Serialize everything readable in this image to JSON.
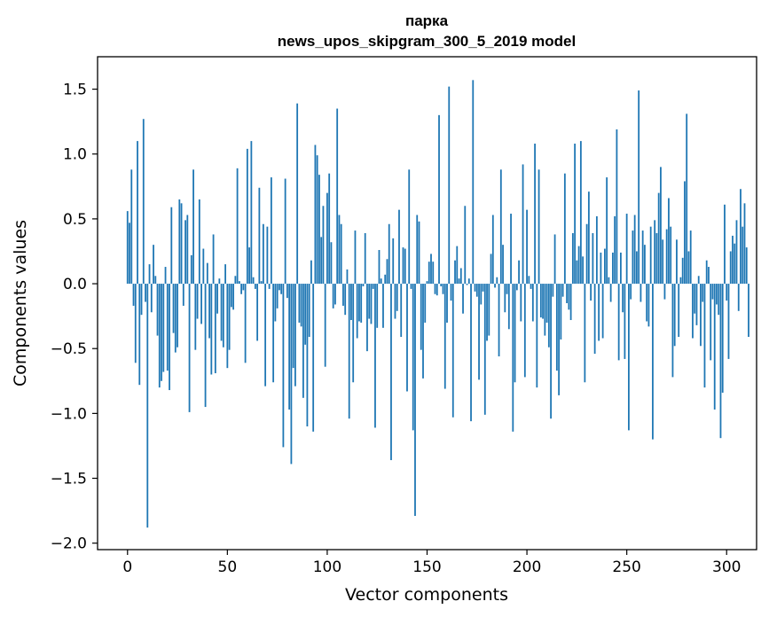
{
  "chart_data": {
    "type": "bar",
    "title_line1": "парка",
    "title_line2": "news_upos_skipgram_300_5_2019 model",
    "xlabel": "Vector components",
    "ylabel": "Components values",
    "xlim": [
      -15,
      315
    ],
    "ylim": [
      -2.05,
      1.75
    ],
    "xticks": [
      0,
      50,
      100,
      150,
      200,
      250,
      300
    ],
    "xtick_labels": [
      "0",
      "50",
      "100",
      "150",
      "200",
      "250",
      "300"
    ],
    "yticks": [
      1.5,
      1.0,
      0.5,
      0.0,
      -0.5,
      -1.0,
      -1.5,
      -2.0
    ],
    "ytick_labels": [
      "1.5",
      "1.0",
      "0.5",
      "0.0",
      "−0.5",
      "−1.0",
      "−1.5",
      "−2.0"
    ],
    "bar_color": "#1f77b4",
    "values": [
      0.56,
      0.47,
      0.88,
      -0.17,
      -0.61,
      1.1,
      -0.78,
      -0.24,
      1.27,
      -0.14,
      -1.88,
      0.15,
      -0.22,
      0.3,
      0.06,
      -0.4,
      -0.8,
      -0.75,
      -0.68,
      0.13,
      -0.67,
      -0.82,
      0.59,
      -0.38,
      -0.53,
      -0.49,
      0.65,
      0.62,
      -0.17,
      0.49,
      0.53,
      -0.99,
      0.22,
      0.88,
      -0.51,
      -0.27,
      0.65,
      -0.31,
      0.27,
      -0.95,
      0.16,
      -0.42,
      -0.7,
      0.38,
      -0.69,
      -0.23,
      0.04,
      -0.44,
      -0.49,
      0.15,
      -0.65,
      -0.51,
      -0.18,
      -0.2,
      0.06,
      0.89,
      0.02,
      -0.08,
      -0.05,
      -0.61,
      1.04,
      0.28,
      1.1,
      0.05,
      -0.04,
      -0.44,
      0.74,
      0.02,
      0.46,
      -0.79,
      0.44,
      -0.04,
      0.82,
      -0.76,
      -0.29,
      -0.19,
      -0.05,
      -0.08,
      -1.26,
      0.81,
      -0.11,
      -0.97,
      -1.39,
      -0.65,
      -0.79,
      1.39,
      -0.3,
      -0.33,
      -0.88,
      -0.47,
      -1.1,
      -0.41,
      0.18,
      -1.14,
      1.07,
      0.99,
      0.84,
      0.36,
      0.6,
      -0.64,
      0.7,
      0.85,
      0.32,
      -0.19,
      -0.16,
      1.35,
      0.53,
      0.46,
      -0.17,
      -0.24,
      0.11,
      -1.04,
      -0.28,
      -0.76,
      0.41,
      -0.42,
      -0.29,
      -0.3,
      -0.02,
      0.39,
      -0.52,
      -0.27,
      -0.31,
      -0.04,
      -1.11,
      -0.34,
      0.26,
      0.04,
      -0.34,
      0.07,
      0.19,
      0.46,
      -1.36,
      0.35,
      -0.27,
      -0.21,
      0.57,
      -0.41,
      0.28,
      0.27,
      -0.83,
      0.88,
      -0.04,
      -1.13,
      -1.79,
      0.53,
      0.48,
      -0.51,
      -0.73,
      -0.3,
      0.02,
      0.17,
      0.23,
      0.17,
      -0.08,
      -0.09,
      1.3,
      -0.02,
      -0.08,
      -0.81,
      -0.3,
      1.52,
      -0.13,
      -1.03,
      0.18,
      0.29,
      0.04,
      0.12,
      -0.23,
      0.6,
      -0.01,
      0.04,
      -1.06,
      1.57,
      -0.06,
      -0.1,
      -0.74,
      -0.16,
      -0.06,
      -1.01,
      -0.44,
      -0.4,
      0.23,
      0.53,
      -0.03,
      0.05,
      -0.56,
      0.88,
      0.3,
      -0.22,
      -0.08,
      -0.35,
      0.54,
      -1.14,
      -0.76,
      -0.05,
      0.18,
      -0.29,
      0.92,
      -0.72,
      0.57,
      0.06,
      -0.04,
      -0.29,
      1.08,
      -0.8,
      0.88,
      -0.26,
      -0.27,
      -0.4,
      -0.3,
      -0.49,
      -1.04,
      -0.1,
      0.38,
      -0.67,
      -0.86,
      -0.43,
      -0.1,
      0.85,
      -0.15,
      -0.2,
      -0.28,
      0.39,
      1.08,
      0.18,
      0.29,
      1.1,
      0.21,
      -0.76,
      0.46,
      0.71,
      -0.13,
      0.39,
      -0.54,
      0.52,
      -0.44,
      0.24,
      -0.42,
      0.27,
      0.82,
      0.05,
      -0.14,
      0.24,
      0.52,
      1.19,
      -0.59,
      0.24,
      -0.22,
      -0.58,
      0.54,
      -1.13,
      -0.12,
      0.41,
      0.53,
      0.25,
      1.49,
      -0.14,
      0.41,
      0.3,
      -0.29,
      -0.33,
      0.44,
      -1.2,
      0.49,
      0.39,
      0.7,
      0.9,
      0.34,
      -0.12,
      0.42,
      0.66,
      0.44,
      -0.72,
      -0.48,
      0.34,
      -0.41,
      0.05,
      0.2,
      0.79,
      1.31,
      0.25,
      0.41,
      -0.42,
      -0.23,
      -0.32,
      0.06,
      -0.48,
      -0.14,
      -0.8,
      0.18,
      0.13,
      -0.59,
      -0.12,
      -0.97,
      -0.16,
      -0.24,
      -1.19,
      -0.84,
      0.61,
      -0.13,
      -0.58,
      0.25,
      0.37,
      0.31,
      0.49,
      -0.21,
      0.73,
      0.44,
      0.62,
      0.28,
      -0.41
    ]
  }
}
